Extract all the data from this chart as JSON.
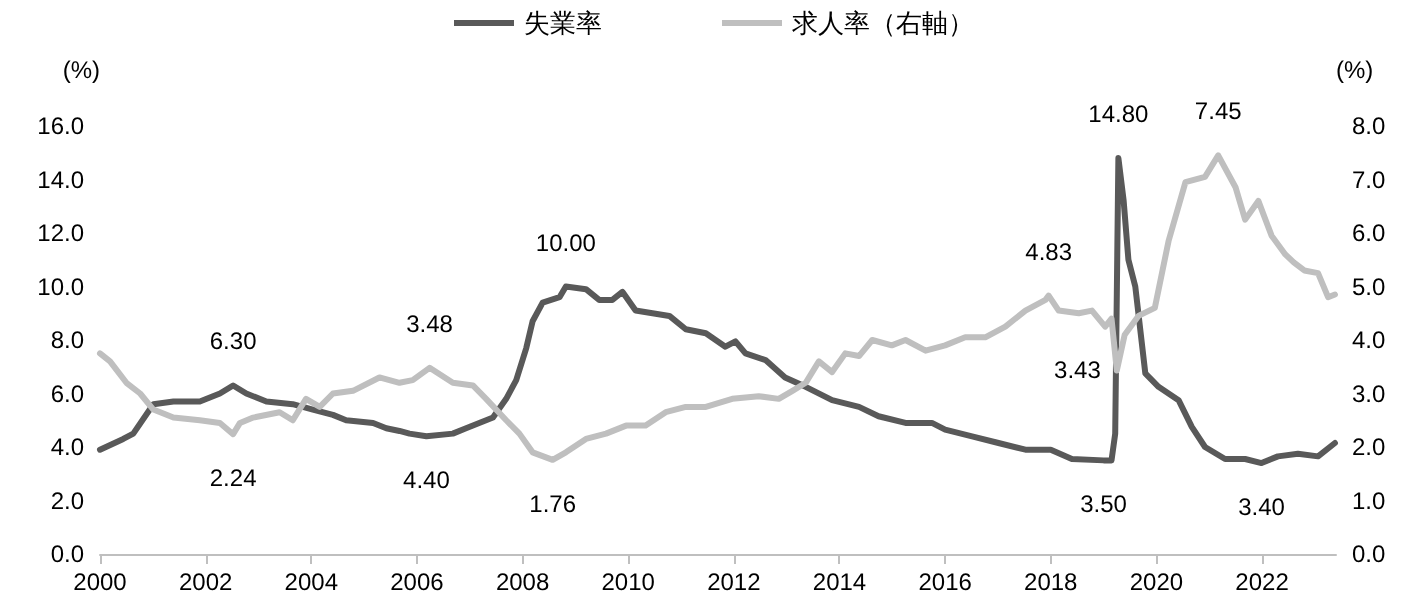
{
  "chart_data": {
    "type": "line",
    "ylabel": "(%)",
    "y2label": "(%)",
    "legend": "top",
    "grid": false,
    "marker": "none",
    "line_style": "solid",
    "xlim": [
      2000,
      2023.4
    ],
    "xticks": [
      2000,
      2002,
      2004,
      2006,
      2008,
      2010,
      2012,
      2014,
      2016,
      2018,
      2020,
      2022
    ],
    "ylim": [
      0,
      16
    ],
    "yticks": [
      {
        "value": 0,
        "label": "0.0"
      },
      {
        "value": 2,
        "label": "2.0"
      },
      {
        "value": 4,
        "label": "4.0"
      },
      {
        "value": 6,
        "label": "6.0"
      },
      {
        "value": 8,
        "label": "8.0"
      },
      {
        "value": 10,
        "label": "10.0"
      },
      {
        "value": 12,
        "label": "12.0"
      },
      {
        "value": 14,
        "label": "14.0"
      },
      {
        "value": 16,
        "label": "16.0"
      }
    ],
    "y2lim": [
      0,
      8
    ],
    "y2ticks": [
      {
        "value": 0,
        "label": "0.0"
      },
      {
        "value": 1,
        "label": "1.0"
      },
      {
        "value": 2,
        "label": "2.0"
      },
      {
        "value": 3,
        "label": "3.0"
      },
      {
        "value": 4,
        "label": "4.0"
      },
      {
        "value": 5,
        "label": "5.0"
      },
      {
        "value": 6,
        "label": "6.0"
      },
      {
        "value": 7,
        "label": "7.0"
      },
      {
        "value": 8,
        "label": "8.0"
      }
    ],
    "series": [
      {
        "name": "失業率",
        "color": "#595959",
        "x": [
          2000.0,
          2000.44,
          2000.63,
          2001.01,
          2001.39,
          2001.89,
          2002.27,
          2002.52,
          2002.77,
          2003.15,
          2003.65,
          2004.03,
          2004.41,
          2004.66,
          2005.17,
          2005.42,
          2005.67,
          2005.86,
          2006.18,
          2006.68,
          2006.93,
          2007.31,
          2007.44,
          2007.69,
          2007.88,
          2008.07,
          2008.19,
          2008.38,
          2008.7,
          2008.82,
          2009.2,
          2009.45,
          2009.7,
          2009.89,
          2010.14,
          2010.46,
          2010.78,
          2011.09,
          2011.47,
          2011.84,
          2012.03,
          2012.22,
          2012.6,
          2012.97,
          2013.36,
          2013.86,
          2014.37,
          2014.74,
          2015.25,
          2015.75,
          2016.0,
          2016.51,
          2017.01,
          2017.52,
          2018.0,
          2018.4,
          2019.0,
          2019.15,
          2019.22,
          2019.28,
          2019.38,
          2019.47,
          2019.6,
          2019.79,
          2020.04,
          2020.42,
          2020.67,
          2020.92,
          2021.3,
          2021.68,
          2021.99,
          2022.3,
          2022.68,
          2023.06,
          2023.38
        ],
        "values": [
          3.9,
          4.3,
          4.5,
          5.6,
          5.7,
          5.7,
          6.0,
          6.3,
          6.0,
          5.7,
          5.6,
          5.4,
          5.2,
          5.0,
          4.9,
          4.7,
          4.6,
          4.5,
          4.4,
          4.5,
          4.7,
          5.0,
          5.1,
          5.8,
          6.5,
          7.7,
          8.7,
          9.4,
          9.6,
          10.0,
          9.9,
          9.5,
          9.5,
          9.8,
          9.1,
          9.0,
          8.9,
          8.4,
          8.25,
          7.75,
          7.95,
          7.5,
          7.25,
          6.6,
          6.25,
          5.75,
          5.5,
          5.15,
          4.9,
          4.9,
          4.65,
          4.4,
          4.15,
          3.9,
          3.9,
          3.55,
          3.5,
          3.5,
          4.5,
          14.8,
          13.2,
          11.0,
          10.0,
          6.75,
          6.25,
          5.75,
          4.75,
          4.0,
          3.55,
          3.55,
          3.4,
          3.65,
          3.75,
          3.65,
          4.15
        ],
        "value_labels": [
          null,
          null,
          null,
          null,
          null,
          null,
          null,
          "6.30",
          null,
          null,
          null,
          null,
          null,
          null,
          null,
          null,
          null,
          null,
          "4.40",
          null,
          null,
          null,
          null,
          null,
          null,
          null,
          null,
          null,
          null,
          "10.00",
          null,
          null,
          null,
          null,
          null,
          null,
          null,
          null,
          null,
          null,
          null,
          null,
          null,
          null,
          null,
          null,
          null,
          null,
          null,
          null,
          null,
          null,
          null,
          null,
          null,
          null,
          "3.50",
          null,
          null,
          "14.80",
          null,
          null,
          null,
          null,
          null,
          null,
          null,
          null,
          null,
          null,
          "3.40",
          null,
          null,
          null,
          null
        ]
      },
      {
        "name": "求人率（右軸）",
        "color": "#bfbfbf",
        "axis": "y2",
        "x": [
          2000.0,
          2000.19,
          2000.5,
          2000.76,
          2001.01,
          2001.39,
          2001.89,
          2002.27,
          2002.52,
          2002.65,
          2002.9,
          2003.4,
          2003.65,
          2003.9,
          2004.16,
          2004.41,
          2004.79,
          2005.29,
          2005.67,
          2005.92,
          2006.24,
          2006.68,
          2007.06,
          2007.31,
          2007.69,
          2007.94,
          2008.19,
          2008.57,
          2008.82,
          2009.2,
          2009.58,
          2009.96,
          2010.33,
          2010.71,
          2011.09,
          2011.47,
          2011.97,
          2012.47,
          2012.85,
          2013.11,
          2013.36,
          2013.61,
          2013.86,
          2014.11,
          2014.37,
          2014.62,
          2014.99,
          2015.25,
          2015.63,
          2016.0,
          2016.38,
          2016.76,
          2017.14,
          2017.52,
          2017.9,
          2017.96,
          2018.15,
          2018.53,
          2018.78,
          2019.03,
          2019.15,
          2019.25,
          2019.4,
          2019.66,
          2019.97,
          2020.23,
          2020.55,
          2020.92,
          2021.17,
          2021.5,
          2021.68,
          2021.93,
          2022.18,
          2022.44,
          2022.6,
          2022.8,
          2023.06,
          2023.25,
          2023.38
        ],
        "values": [
          3.75,
          3.6,
          3.2,
          3.0,
          2.7,
          2.55,
          2.5,
          2.45,
          2.24,
          2.45,
          2.55,
          2.65,
          2.5,
          2.9,
          2.75,
          3.0,
          3.05,
          3.3,
          3.2,
          3.25,
          3.48,
          3.2,
          3.15,
          2.9,
          2.5,
          2.25,
          1.9,
          1.76,
          1.9,
          2.15,
          2.25,
          2.4,
          2.4,
          2.65,
          2.75,
          2.75,
          2.9,
          2.95,
          2.9,
          3.05,
          3.2,
          3.6,
          3.4,
          3.75,
          3.7,
          4.0,
          3.9,
          4.0,
          3.8,
          3.9,
          4.05,
          4.05,
          4.25,
          4.55,
          4.75,
          4.83,
          4.55,
          4.5,
          4.55,
          4.25,
          4.4,
          3.43,
          4.1,
          4.45,
          4.6,
          5.85,
          6.95,
          7.05,
          7.45,
          6.85,
          6.25,
          6.6,
          5.95,
          5.6,
          5.45,
          5.3,
          5.25,
          4.8,
          4.85
        ],
        "value_labels": [
          null,
          null,
          null,
          null,
          null,
          null,
          null,
          null,
          "2.24",
          null,
          null,
          null,
          null,
          null,
          null,
          null,
          null,
          null,
          null,
          null,
          "3.48",
          null,
          null,
          null,
          null,
          null,
          null,
          "1.76",
          null,
          null,
          null,
          null,
          null,
          null,
          null,
          null,
          null,
          null,
          null,
          null,
          null,
          null,
          null,
          null,
          null,
          null,
          null,
          null,
          null,
          null,
          null,
          null,
          null,
          null,
          null,
          "4.83",
          null,
          null,
          null,
          null,
          null,
          "3.43",
          null,
          null,
          null,
          null,
          null,
          null,
          "7.45",
          null,
          null,
          null,
          null,
          null,
          null,
          null,
          null,
          null,
          null
        ]
      }
    ]
  }
}
